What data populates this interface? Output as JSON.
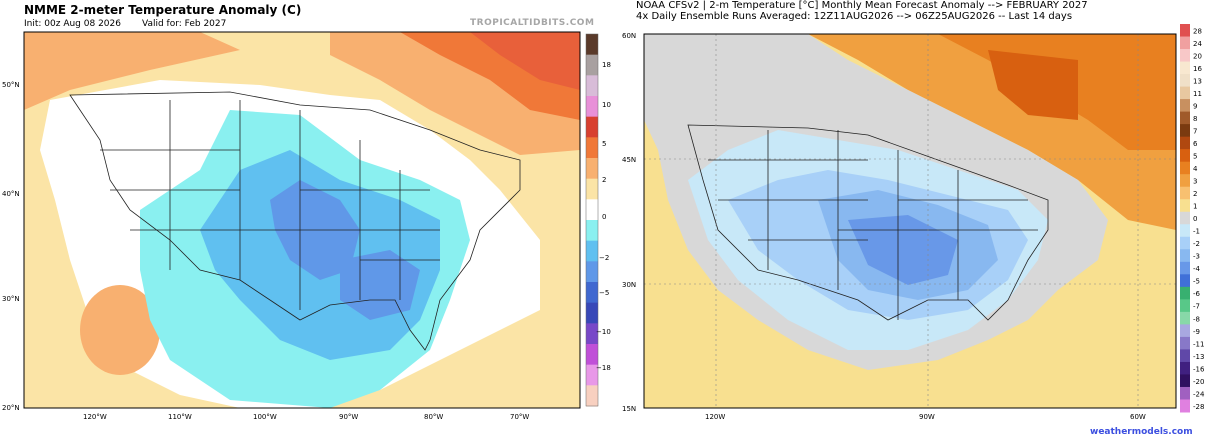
{
  "left": {
    "title": "NMME 2-meter Temperature Anomaly (C)",
    "init": "Init: 00z Aug 08 2026",
    "valid": "Valid for: Feb 2027",
    "brand": "TROPICALTIDBITS.COM",
    "lat_labels": [
      "50°N",
      "40°N",
      "30°N",
      "20°N"
    ],
    "lon_labels": [
      "120°W",
      "110°W",
      "100°W",
      "90°W",
      "80°W",
      "70°W"
    ],
    "colorbar_labels": [
      "18",
      "10",
      "5",
      "2",
      "0",
      "−2",
      "−5",
      "−10",
      "−18"
    ]
  },
  "right": {
    "title_line1": "NOAA CFSv2 | 2-m Temperature [°C] Monthly Mean Forecast Anomaly --> FEBRUARY 2027",
    "title_line2": "4x Daily Ensemble Runs Averaged: 12Z11AUG2026 --> 06Z25AUG2026 -- Last 14 days",
    "lat_labels": [
      "60N",
      "45N",
      "30N",
      "15N"
    ],
    "lon_labels": [
      "120W",
      "90W",
      "60W"
    ],
    "colorbar_labels": [
      "28",
      "24",
      "20",
      "16",
      "13",
      "11",
      "9",
      "8",
      "7",
      "6",
      "5",
      "4",
      "3",
      "2",
      "1",
      "0",
      "-1",
      "-2",
      "-3",
      "-4",
      "-5",
      "-6",
      "-7",
      "-8",
      "-9",
      "-11",
      "-13",
      "-16",
      "-20",
      "-24",
      "-28"
    ],
    "brand": "weathermodels.com"
  },
  "colors": {
    "left_scale": [
      "#5a3a2a",
      "#a8a0a0",
      "#d8bcd8",
      "#e890d8",
      "#d84030",
      "#f07838",
      "#f8b070",
      "#fbe4a6",
      "#ffffff",
      "#8af0f0",
      "#60c0f0",
      "#6098e8",
      "#4068d0",
      "#3848b8",
      "#7848c8",
      "#c050d8",
      "#e898e8",
      "#f8d0c0"
    ],
    "right_scale": [
      "#e05050",
      "#f0a0a0",
      "#f8c8c8",
      "#f8e8d0",
      "#f0e0c8",
      "#e8c8a0",
      "#c89060",
      "#a05a2a",
      "#7a3a10",
      "#b04810",
      "#d86010",
      "#e88020",
      "#f0a040",
      "#f8c070",
      "#f8e090",
      "#d8d8d8",
      "#c8e8f8",
      "#a8d0f8",
      "#88b8f0",
      "#6898e8",
      "#4070d8",
      "#38b070",
      "#58c888",
      "#88d8a8",
      "#a8a8e0",
      "#8878c8",
      "#6048a8",
      "#402080",
      "#301060",
      "#a060c0",
      "#e080e0"
    ]
  }
}
